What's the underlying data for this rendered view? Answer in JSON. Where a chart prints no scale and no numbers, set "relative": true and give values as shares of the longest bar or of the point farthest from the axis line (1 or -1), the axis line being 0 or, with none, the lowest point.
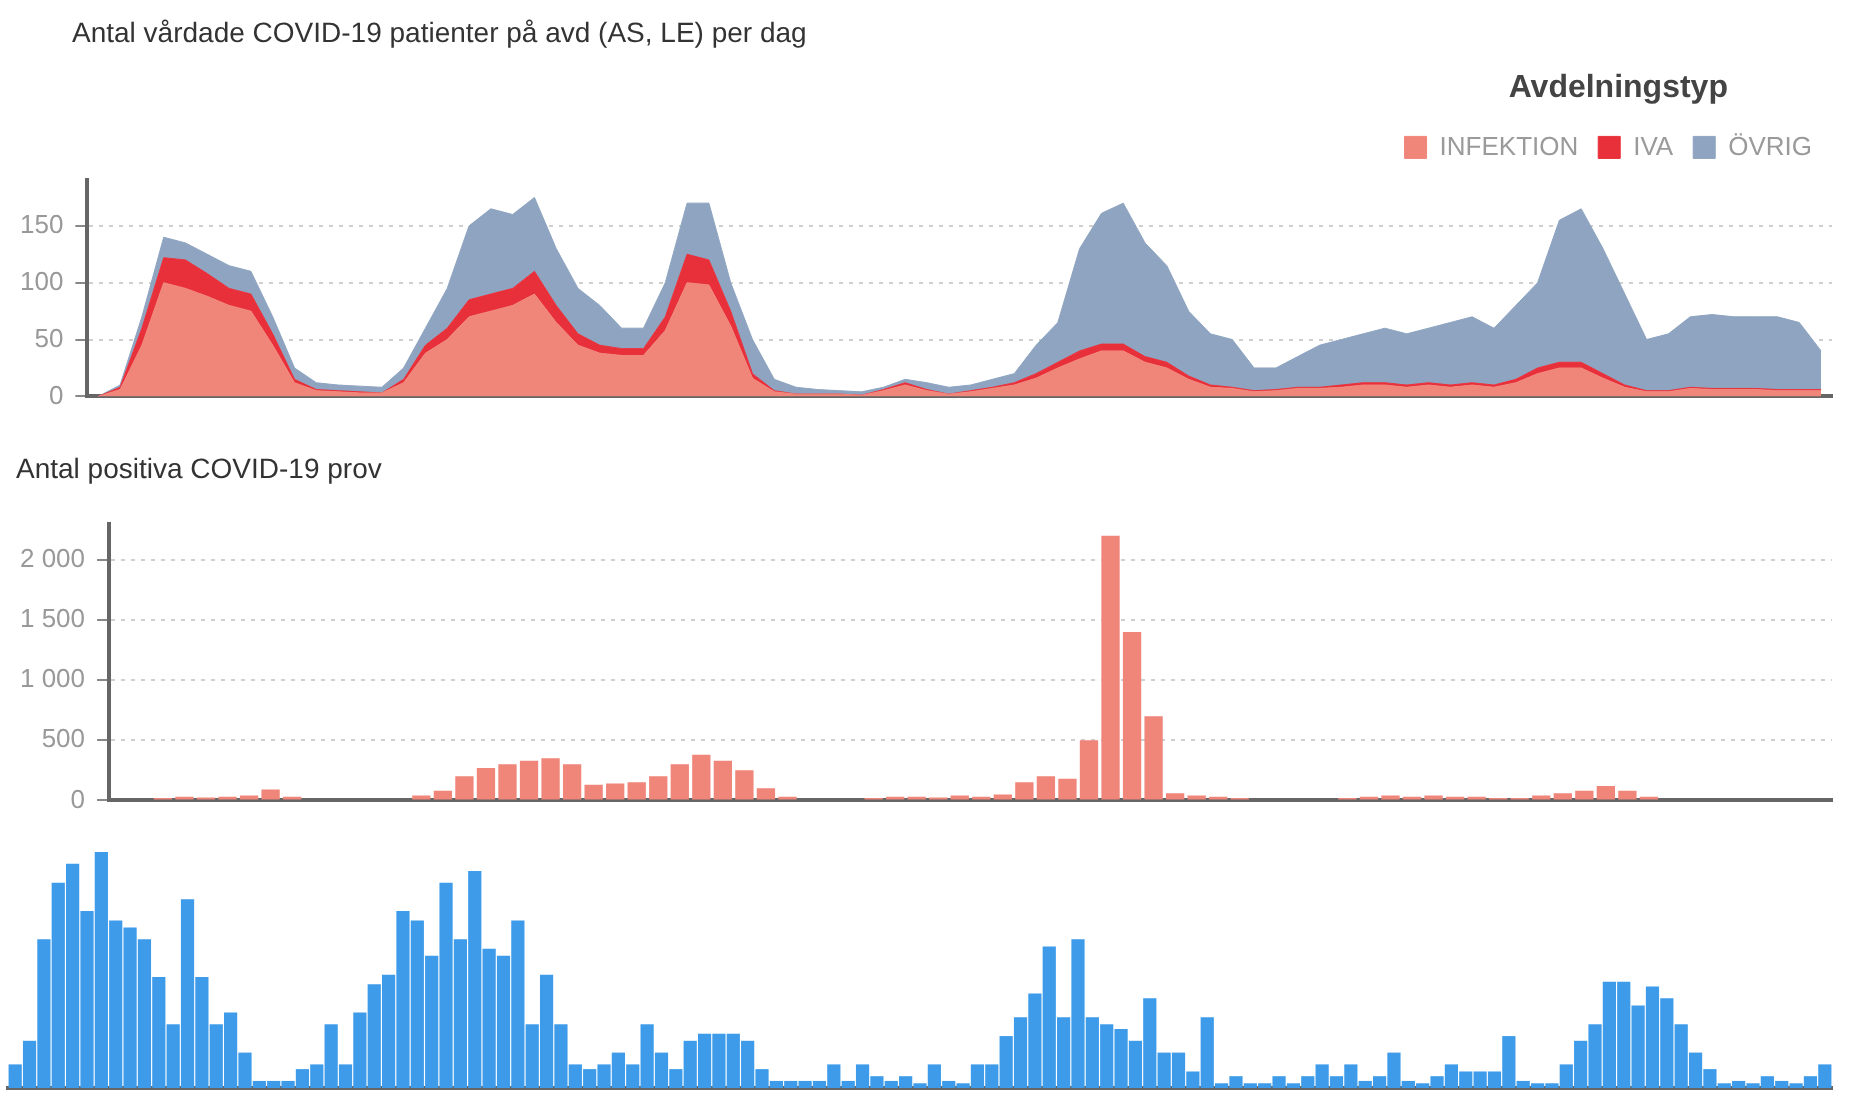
{
  "chart_data": [
    {
      "type": "area",
      "title": "Antal vårdade COVID-19 patienter på avd (AS, LE) per dag",
      "legend_title": "Avdelningstyp",
      "legend": "top right",
      "stacked": true,
      "grid": "y",
      "tick_labels": "y",
      "marker": "none",
      "categories": [
        null,
        null,
        null,
        null,
        null,
        null,
        null,
        null,
        null,
        null,
        null,
        null,
        null,
        null,
        null,
        null,
        null,
        null,
        null,
        null,
        null,
        null,
        null,
        null,
        null,
        null,
        null,
        null,
        null,
        null,
        null,
        null,
        null,
        null,
        null,
        null,
        null,
        null,
        null,
        null,
        null,
        null,
        null,
        null,
        null,
        null,
        null,
        null,
        null,
        null,
        null,
        null,
        null,
        null,
        null,
        null,
        null,
        null,
        null,
        null,
        null,
        null,
        null,
        null,
        null,
        null,
        null,
        null,
        null,
        null,
        null,
        null,
        null,
        null,
        null,
        null,
        null,
        null,
        null,
        null
      ],
      "ylim": [
        0,
        190
      ],
      "yticks": [
        0,
        50,
        100,
        150
      ],
      "series": [
        {
          "name": "INFEKTION",
          "color": "#f0857a",
          "values": [
            0,
            6,
            45,
            100,
            95,
            88,
            80,
            75,
            45,
            12,
            5,
            4,
            3,
            3,
            12,
            38,
            50,
            70,
            75,
            80,
            90,
            65,
            45,
            38,
            36,
            36,
            58,
            100,
            98,
            62,
            16,
            4,
            2,
            2,
            2,
            1,
            5,
            10,
            5,
            2,
            4,
            7,
            10,
            16,
            25,
            33,
            40,
            40,
            30,
            25,
            15,
            8,
            7,
            4,
            5,
            7,
            7,
            8,
            10,
            10,
            8,
            10,
            8,
            10,
            8,
            12,
            20,
            25,
            25,
            16,
            8,
            4,
            4,
            7,
            6,
            6,
            6,
            5,
            5,
            5
          ]
        },
        {
          "name": "IVA",
          "color": "#e8303a",
          "values": [
            0,
            2,
            15,
            22,
            25,
            20,
            15,
            15,
            10,
            3,
            1,
            1,
            1,
            0,
            3,
            7,
            10,
            15,
            15,
            15,
            20,
            15,
            10,
            7,
            6,
            6,
            12,
            25,
            22,
            13,
            4,
            1,
            0,
            0,
            0,
            0,
            1,
            2,
            1,
            0,
            1,
            1,
            2,
            4,
            5,
            7,
            6,
            6,
            5,
            5,
            3,
            2,
            1,
            1,
            1,
            1,
            1,
            2,
            2,
            2,
            2,
            2,
            2,
            2,
            2,
            3,
            5,
            5,
            5,
            4,
            2,
            1,
            1,
            1,
            1,
            1,
            1,
            1,
            1,
            1
          ]
        },
        {
          "name": "ÖVRIG",
          "color": "#8ea4c0",
          "values": [
            0,
            2,
            10,
            18,
            15,
            17,
            20,
            20,
            15,
            10,
            6,
            5,
            5,
            5,
            10,
            15,
            35,
            65,
            75,
            65,
            65,
            50,
            40,
            35,
            18,
            18,
            30,
            45,
            50,
            25,
            30,
            10,
            6,
            4,
            3,
            3,
            2,
            3,
            6,
            6,
            5,
            7,
            8,
            25,
            35,
            90,
            115,
            124,
            100,
            85,
            57,
            45,
            42,
            20,
            19,
            27,
            37,
            40,
            43,
            48,
            45,
            48,
            55,
            58,
            50,
            65,
            75,
            125,
            135,
            110,
            80,
            45,
            50,
            62,
            65,
            63,
            63,
            64,
            59,
            34
          ]
        }
      ]
    },
    {
      "type": "bar",
      "title": "Antal positiva COVID-19 prov",
      "color": "#f0857a",
      "grid": "y",
      "tick_labels": "y",
      "categories": [
        null,
        null,
        null,
        null,
        null,
        null,
        null,
        null,
        null,
        null,
        null,
        null,
        null,
        null,
        null,
        null,
        null,
        null,
        null,
        null,
        null,
        null,
        null,
        null,
        null,
        null,
        null,
        null,
        null,
        null,
        null,
        null,
        null,
        null,
        null,
        null,
        null,
        null,
        null,
        null,
        null,
        null,
        null,
        null,
        null,
        null,
        null,
        null,
        null,
        null,
        null,
        null,
        null,
        null,
        null,
        null,
        null,
        null,
        null,
        null,
        null,
        null,
        null,
        null,
        null,
        null,
        null,
        null,
        null,
        null,
        null,
        null,
        null,
        null,
        null,
        null,
        null,
        null,
        null,
        null
      ],
      "values": [
        0,
        null,
        20,
        30,
        25,
        30,
        40,
        90,
        30,
        null,
        0,
        0,
        0,
        0,
        40,
        80,
        200,
        270,
        300,
        330,
        350,
        300,
        130,
        140,
        150,
        200,
        300,
        380,
        330,
        250,
        100,
        30,
        null,
        0,
        0,
        20,
        30,
        30,
        25,
        40,
        30,
        50,
        150,
        200,
        180,
        500,
        2200,
        1400,
        700,
        60,
        40,
        30,
        20,
        null,
        0,
        0,
        null,
        20,
        30,
        40,
        30,
        40,
        30,
        30,
        20,
        20,
        40,
        60,
        80,
        120,
        80,
        30,
        0,
        0,
        0,
        0,
        0,
        0,
        0,
        0
      ],
      "ylim": [
        0,
        2300
      ],
      "yticks": [
        0,
        500,
        {
          "value": 1000,
          "label": "1 000"
        },
        {
          "value": 1500,
          "label": "1 500"
        },
        {
          "value": 2000,
          "label": "2 000"
        }
      ]
    },
    {
      "type": "bar",
      "relative": true,
      "color": "#3d9be9",
      "tick_labels": false,
      "categories": [
        null,
        null,
        null,
        null,
        null,
        null,
        null,
        null,
        null,
        null,
        null,
        null,
        null,
        null,
        null,
        null,
        null,
        null,
        null,
        null,
        null,
        null,
        null,
        null,
        null,
        null,
        null,
        null,
        null,
        null,
        null,
        null,
        null,
        null,
        null,
        null,
        null,
        null,
        null,
        null,
        null,
        null,
        null,
        null,
        null,
        null,
        null,
        null,
        null,
        null,
        null,
        null,
        null,
        null,
        null,
        null,
        null,
        null,
        null,
        null,
        null,
        null,
        null,
        null,
        null,
        null,
        null,
        null,
        null,
        null,
        null,
        null,
        null,
        null,
        null,
        null,
        null,
        null,
        null,
        null,
        null,
        null,
        null,
        null,
        null,
        null,
        null,
        null,
        null,
        null,
        null,
        null,
        null,
        null,
        null,
        null,
        null,
        null,
        null,
        null,
        null,
        null,
        null,
        null,
        null,
        null,
        null,
        null,
        null,
        null,
        null,
        null,
        null,
        null,
        null,
        null,
        null,
        null,
        null,
        null,
        null,
        null,
        null,
        null,
        null,
        null,
        null
      ],
      "values": [
        0.1,
        0.2,
        0.63,
        0.87,
        0.95,
        0.75,
        1,
        0.71,
        0.68,
        0.63,
        0.47,
        0.27,
        0.8,
        0.47,
        0.27,
        0.32,
        0.15,
        0.03,
        0.03,
        0.03,
        0.08,
        0.1,
        0.27,
        0.1,
        0.32,
        0.44,
        0.48,
        0.75,
        0.71,
        0.56,
        0.87,
        0.63,
        0.92,
        0.59,
        0.56,
        0.71,
        0.27,
        0.48,
        0.27,
        0.1,
        0.08,
        0.1,
        0.15,
        0.1,
        0.27,
        0.15,
        0.08,
        0.2,
        0.23,
        0.23,
        0.23,
        0.2,
        0.08,
        0.03,
        0.03,
        0.03,
        0.03,
        0.1,
        0.03,
        0.1,
        0.05,
        0.03,
        0.05,
        0.02,
        0.1,
        0.03,
        0.02,
        0.1,
        0.1,
        0.22,
        0.3,
        0.4,
        0.6,
        0.3,
        0.63,
        0.3,
        0.27,
        0.25,
        0.2,
        0.38,
        0.15,
        0.15,
        0.07,
        0.3,
        0.02,
        0.05,
        0.02,
        0.02,
        0.05,
        0.02,
        0.05,
        0.1,
        0.05,
        0.1,
        0.03,
        0.05,
        0.15,
        0.03,
        0.02,
        0.05,
        0.1,
        0.07,
        0.07,
        0.07,
        0.22,
        0.03,
        0.02,
        0.02,
        0.1,
        0.2,
        0.27,
        0.45,
        0.45,
        0.35,
        0.43,
        0.38,
        0.27,
        0.15,
        0.08,
        0.02,
        0.03,
        0.02,
        0.05,
        0.03,
        0.02,
        0.05,
        0.1
      ]
    }
  ]
}
